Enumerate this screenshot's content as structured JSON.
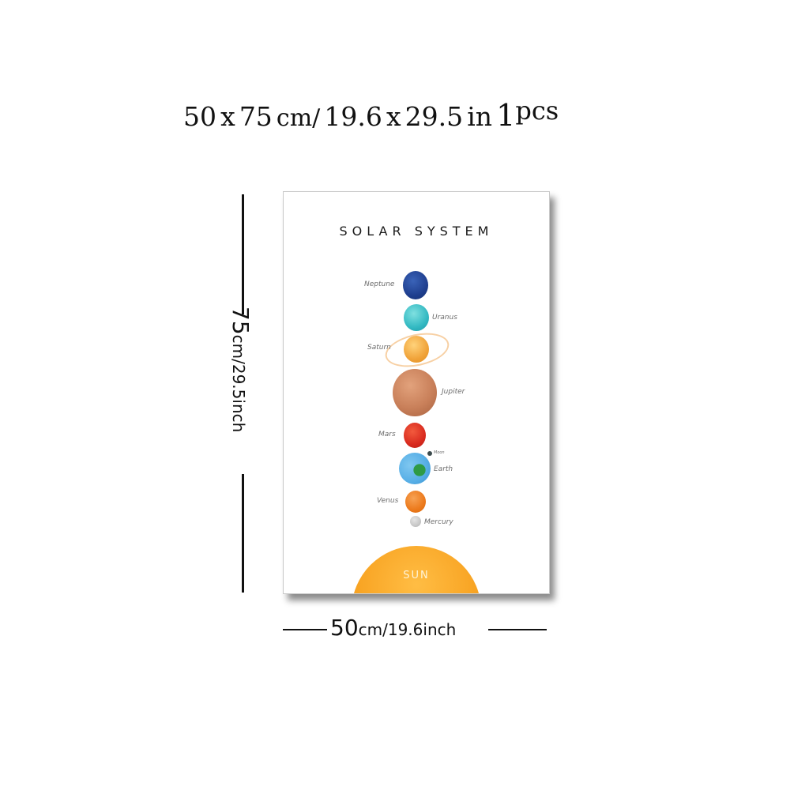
{
  "headline": {
    "width_value": "50",
    "x1": "x",
    "height_value": "75",
    "cm_unit": "cm/",
    "inch_width": "19.6",
    "x2": "x",
    "inch_height": "29.5",
    "in_unit": "in",
    "count": "1",
    "pcs": "pcs"
  },
  "poster": {
    "title": "SOLAR SYSTEM",
    "planets": {
      "neptune": "Neptune",
      "uranus": "Uranus",
      "saturn": "Saturn",
      "jupiter": "Jupiter",
      "mars": "Mars",
      "moon": "Moon",
      "earth": "Earth",
      "venus": "Venus",
      "mercury": "Mercury"
    },
    "sun": "SUN"
  },
  "dimensions": {
    "height_number": "75",
    "height_unit": "cm/29.5inch",
    "width_number": "50",
    "width_unit": "cm/19.6inch"
  },
  "colors": {
    "neptune": "#1f3f8f",
    "uranus": "#33b9c2",
    "saturn": "#f0a33a",
    "jupiter": "#c9805a",
    "mars": "#d92b1f",
    "earth": "#56aee6",
    "venus": "#ec7a1c",
    "mercury": "#c8c8c8",
    "sun": "#f8a322"
  }
}
